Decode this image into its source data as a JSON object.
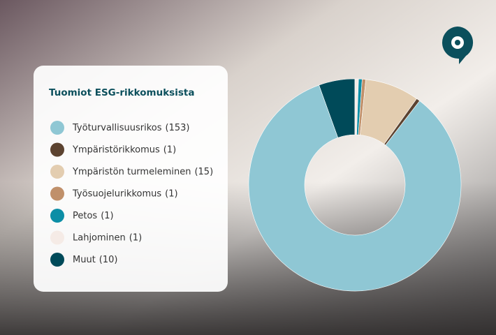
{
  "chart_data": {
    "type": "donut",
    "title": "Tuomiot ESG-rikkomuksista",
    "categories": [
      "Työturvallisuusrikos",
      "Ympäristörikkomus",
      "Ympäristön turmeleminen",
      "Työsuojelurikkomus",
      "Petos",
      "Lahjominen",
      "Muut"
    ],
    "values": [
      153,
      1,
      15,
      1,
      1,
      1,
      10
    ],
    "value_labels": [
      "(153)",
      "(1)",
      "(15)",
      "(1)",
      "(1)",
      "(1)",
      "(10)"
    ],
    "colors": [
      "#8fc7d4",
      "#5c4330",
      "#e3cdb0",
      "#c0906a",
      "#0c8ea6",
      "#f5ebe6",
      "#004a59"
    ]
  }
}
